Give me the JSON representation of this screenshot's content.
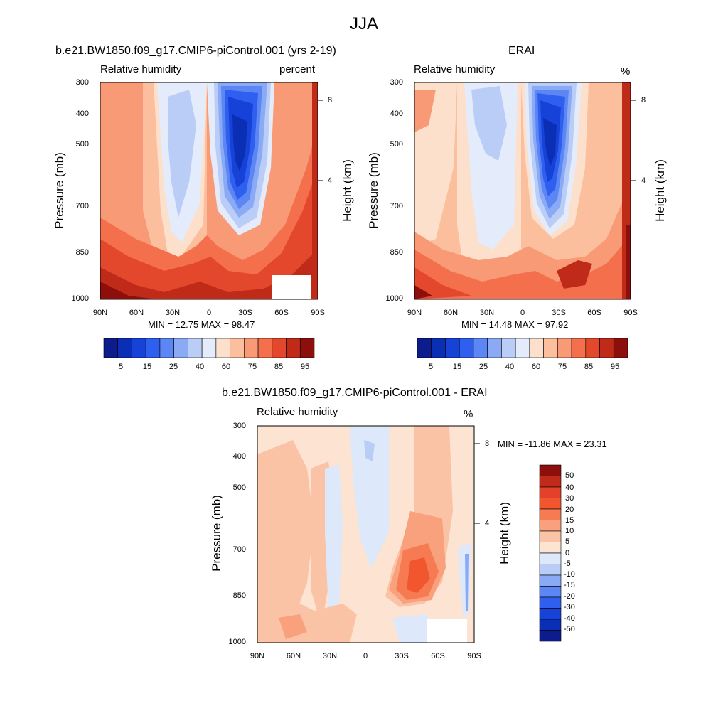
{
  "figure_title": "JJA",
  "panels": [
    {
      "title": "b.e21.BW1850.f09_g17.CMIP6-piControl.001 (yrs 2-19)",
      "left_label": "Relative humidity",
      "right_label": "percent",
      "y_label": "Pressure (mb)",
      "right_axis_label": "Height (km)",
      "y_ticks": [
        "300",
        "400",
        "500",
        "700",
        "850",
        "1000"
      ],
      "height_ticks": [
        "8",
        "4"
      ],
      "x_ticks": [
        "90N",
        "60N",
        "30N",
        "0",
        "30S",
        "60S",
        "90S"
      ],
      "stats": "MIN =  12.75  MAX =  98.47",
      "colorbar_labels": [
        "5",
        "15",
        "25",
        "40",
        "60",
        "75",
        "85",
        "95"
      ]
    },
    {
      "title": "ERAI",
      "left_label": "Relative humidity",
      "right_label": "%",
      "y_label": "Pressure (mb)",
      "right_axis_label": "Height (km)",
      "y_ticks": [
        "300",
        "400",
        "500",
        "700",
        "850",
        "1000"
      ],
      "height_ticks": [
        "8",
        "4"
      ],
      "x_ticks": [
        "90N",
        "60N",
        "30N",
        "0",
        "30S",
        "60S",
        "90S"
      ],
      "stats": "MIN =  14.48  MAX =  97.92",
      "colorbar_labels": [
        "5",
        "15",
        "25",
        "40",
        "60",
        "75",
        "85",
        "95"
      ]
    },
    {
      "title": "b.e21.BW1850.f09_g17.CMIP6-piControl.001 - ERAI",
      "left_label": "Relative humidity",
      "right_label": "%",
      "y_label": "Pressure (mb)",
      "right_axis_label": "Height (km)",
      "y_ticks": [
        "300",
        "400",
        "500",
        "700",
        "850",
        "1000"
      ],
      "height_ticks": [
        "8",
        "4"
      ],
      "x_ticks": [
        "90N",
        "60N",
        "30N",
        "0",
        "30S",
        "60S",
        "90S"
      ],
      "stats": "MIN = -11.86  MAX =  23.31",
      "colorbar_labels": [
        "50",
        "40",
        "30",
        "20",
        "15",
        "10",
        "5",
        "0",
        "-5",
        "-10",
        "-15",
        "-20",
        "-30",
        "-40",
        "-50"
      ]
    }
  ],
  "colors": {
    "abs_scale": [
      "#0c1c8c",
      "#0a2fb5",
      "#1742d8",
      "#2f5fef",
      "#5b86f3",
      "#8aaaf5",
      "#b9cdf7",
      "#e4ecfb",
      "#fde0cc",
      "#fcbf9e",
      "#f99a77",
      "#f46f4c",
      "#e4482c",
      "#bf2a19",
      "#8c0f0c"
    ],
    "diff_scale": [
      "#8c0f0c",
      "#bf2a19",
      "#e4402a",
      "#f2562f",
      "#f77b52",
      "#f9a07c",
      "#fbc3a6",
      "#fde3d2",
      "#dde8fb",
      "#b9cdf7",
      "#8aaaf5",
      "#5b86f3",
      "#2f5fef",
      "#1742d8",
      "#0a2fb5",
      "#0c1c8c"
    ]
  },
  "chart_data": [
    {
      "type": "heatmap",
      "title": "b.e21.BW1850.f09_g17.CMIP6-piControl.001 (yrs 2-19)",
      "xlabel": "",
      "ylabel": "Pressure (mb)",
      "y2label": "Height (km)",
      "x": [
        "90N",
        "60N",
        "30N",
        "0",
        "30S",
        "60S",
        "90S"
      ],
      "y": [
        300,
        400,
        500,
        700,
        850,
        1000
      ],
      "values": [
        [
          75,
          72,
          55,
          40,
          15,
          35,
          80
        ],
        [
          78,
          70,
          52,
          40,
          12.75,
          40,
          82
        ],
        [
          72,
          68,
          50,
          45,
          15,
          45,
          85
        ],
        [
          75,
          70,
          50,
          50,
          30,
          70,
          90
        ],
        [
          88,
          80,
          62,
          78,
          78,
          90,
          92
        ],
        [
          98.47,
          90,
          80,
          90,
          85,
          92,
          94
        ]
      ],
      "min": 12.75,
      "max": 98.47,
      "colorbar": [
        "5",
        "15",
        "25",
        "40",
        "60",
        "75",
        "85",
        "95"
      ]
    },
    {
      "type": "heatmap",
      "title": "ERAI",
      "xlabel": "",
      "ylabel": "Pressure (mb)",
      "y2label": "Height (km)",
      "x": [
        "90N",
        "60N",
        "30N",
        "0",
        "30S",
        "60S",
        "90S"
      ],
      "y": [
        300,
        400,
        500,
        700,
        850,
        1000
      ],
      "values": [
        [
          70,
          65,
          50,
          45,
          15,
          55,
          85
        ],
        [
          72,
          62,
          40,
          45,
          14.48,
          55,
          82
        ],
        [
          65,
          60,
          38,
          50,
          18,
          55,
          80
        ],
        [
          68,
          62,
          45,
          50,
          30,
          60,
          85
        ],
        [
          85,
          78,
          55,
          75,
          68,
          85,
          90
        ],
        [
          97.92,
          88,
          75,
          85,
          80,
          90,
          95
        ]
      ],
      "min": 14.48,
      "max": 97.92,
      "colorbar": [
        "5",
        "15",
        "25",
        "40",
        "60",
        "75",
        "85",
        "95"
      ]
    },
    {
      "type": "heatmap",
      "title": "b.e21.BW1850.f09_g17.CMIP6-piControl.001 - ERAI",
      "xlabel": "",
      "ylabel": "Pressure (mb)",
      "y2label": "Height (km)",
      "x": [
        "90N",
        "60N",
        "30N",
        "0",
        "30S",
        "60S",
        "90S"
      ],
      "y": [
        300,
        400,
        500,
        700,
        850,
        1000
      ],
      "values": [
        [
          2,
          3,
          2,
          -3,
          5,
          3,
          3
        ],
        [
          3,
          5,
          2,
          -4,
          8,
          5,
          5
        ],
        [
          5,
          5,
          -5,
          2,
          8,
          10,
          8
        ],
        [
          4,
          5,
          -5,
          3,
          15,
          12,
          4
        ],
        [
          3,
          4,
          -3,
          8,
          23.31,
          10,
          -8
        ],
        [
          3,
          4,
          2,
          6,
          3,
          8,
          -11.86
        ]
      ],
      "min": -11.86,
      "max": 23.31,
      "colorbar": [
        "50",
        "40",
        "30",
        "20",
        "15",
        "10",
        "5",
        "0",
        "-5",
        "-10",
        "-15",
        "-20",
        "-30",
        "-40",
        "-50"
      ]
    }
  ]
}
